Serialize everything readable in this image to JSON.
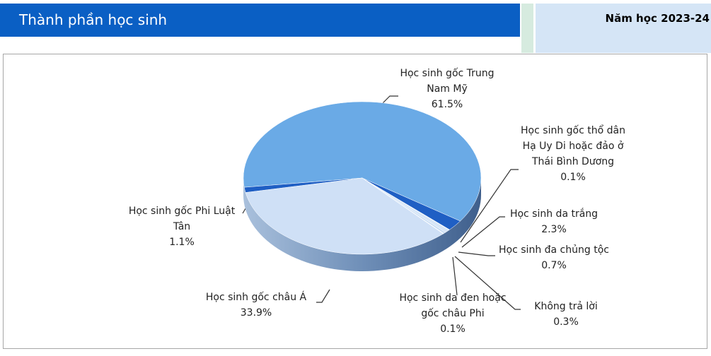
{
  "header": {
    "title": "Thành phần học sinh",
    "year": "Năm học 2023-24"
  },
  "chart_data": {
    "type": "pie",
    "categories": [
      "Học sinh gốc Trung Nam Mỹ",
      "Học sinh da trắng",
      "Học sinh gốc thổ dân Hạ Uy Di hoặc đảo ở Thái Bình Dương",
      "Học sinh đa chủng tộc",
      "Không trả lời",
      "Học sinh da đen hoặc gốc châu Phi",
      "Học sinh gốc châu Á",
      "Học sinh gốc Phi Luật Tân"
    ],
    "values": [
      61.5,
      2.3,
      0.1,
      0.7,
      0.3,
      0.1,
      33.9,
      1.1
    ],
    "value_labels": [
      "61.5%",
      "2.3%",
      "0.1%",
      "0.7%",
      "0.3%",
      "0.1%",
      "33.9%",
      "1.1%"
    ],
    "colors": [
      "#6aaae6",
      "#1f5fc4",
      "#e8f1fb",
      "#d7e6f7",
      "#c4daf3",
      "#f2f7fd",
      "#cfe0f6",
      "#1f5fc4"
    ]
  }
}
